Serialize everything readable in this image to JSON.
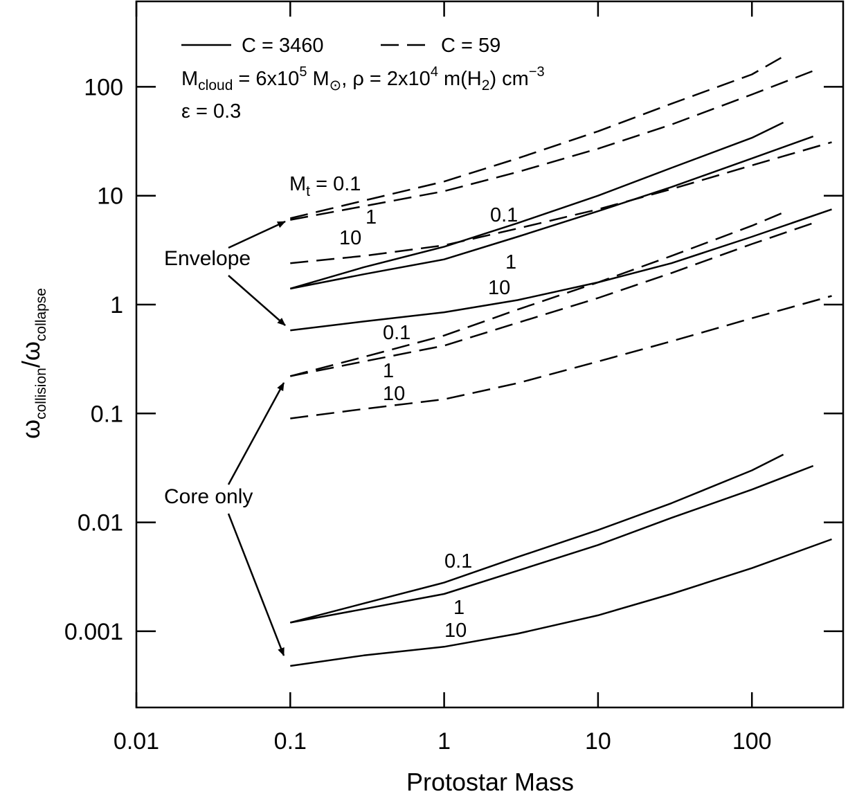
{
  "chart_data": {
    "type": "line",
    "xlabel": "Protostar Mass",
    "ylabel": "",
    "ylabel_parts": {
      "base": "ω",
      "num_sub": "collision",
      "sep": "/",
      "den_base": "ω",
      "den_sub": "collapse"
    },
    "xscale": "log",
    "yscale": "log",
    "xlim": [
      0.01,
      450
    ],
    "ylim": [
      0.0001,
      700
    ],
    "x_ticks": [
      {
        "value": 0.01,
        "label": "0.01"
      },
      {
        "value": 0.1,
        "label": "0.1"
      },
      {
        "value": 1,
        "label": "1"
      },
      {
        "value": 10,
        "label": "10"
      },
      {
        "value": 100,
        "label": "100"
      }
    ],
    "y_ticks": [
      {
        "value": 0.001,
        "label": "0.001"
      },
      {
        "value": 0.01,
        "label": "0.01"
      },
      {
        "value": 0.1,
        "label": "0.1"
      },
      {
        "value": 1,
        "label": "1"
      },
      {
        "value": 10,
        "label": "10"
      },
      {
        "value": 100,
        "label": "100"
      }
    ],
    "grid": false,
    "legend": {
      "position": "top-left",
      "entries": [
        {
          "label": "C = 3460",
          "style": "solid"
        },
        {
          "label": "C = 59",
          "style": "dashed"
        }
      ],
      "info_line1": {
        "m": "M",
        "m_sub": "cloud",
        "eq1": " = 6x10",
        "exp1": "5",
        "msun": " M",
        "msun_sub": "⊙",
        "rho": ", ρ = 2x10",
        "exp2": "4",
        "mh": " m(H",
        "h_sub": "2",
        "cm": ") cm",
        "exp3": "−3"
      },
      "info_line2": "ε = 0.3"
    },
    "annotations": {
      "mt_label": {
        "m": "M",
        "sub": "t",
        "rest": " = 0.1"
      },
      "envelope": "Envelope",
      "core_only": "Core only"
    },
    "series": [
      {
        "group": "Envelope",
        "C": "C = 59",
        "style": "dashed",
        "label": "0.1",
        "x": [
          0.1,
          0.3,
          1,
          3,
          10,
          30,
          100,
          160
        ],
        "y": [
          6.2,
          9.0,
          13.5,
          22,
          39,
          70,
          130,
          190
        ]
      },
      {
        "group": "Envelope",
        "C": "C = 59",
        "style": "dashed",
        "label": "1",
        "x": [
          0.1,
          0.3,
          1,
          3,
          10,
          30,
          100,
          250
        ],
        "y": [
          6.0,
          8.0,
          11.0,
          16.5,
          27,
          45,
          85,
          140
        ]
      },
      {
        "group": "Envelope",
        "C": "C = 3460",
        "style": "solid",
        "label": "0.1",
        "x": [
          0.1,
          0.3,
          1,
          3,
          10,
          30,
          100,
          160
        ],
        "y": [
          1.4,
          2.2,
          3.4,
          5.6,
          10,
          18,
          34,
          47
        ]
      },
      {
        "group": "Envelope",
        "C": "C = 59",
        "style": "dashed",
        "label": "10",
        "x": [
          0.1,
          0.3,
          1,
          3,
          10,
          30,
          100,
          330
        ],
        "y": [
          2.4,
          2.8,
          3.5,
          5.0,
          7.5,
          11.5,
          19,
          31
        ]
      },
      {
        "group": "Envelope",
        "C": "C = 3460",
        "style": "solid",
        "label": "1",
        "x": [
          0.1,
          0.3,
          1,
          3,
          10,
          30,
          100,
          250
        ],
        "y": [
          1.4,
          1.9,
          2.6,
          4.2,
          7.2,
          12,
          22,
          35
        ]
      },
      {
        "group": "Envelope",
        "C": "C = 3460",
        "style": "solid",
        "label": "10",
        "x": [
          0.1,
          0.3,
          1,
          3,
          10,
          30,
          100,
          330
        ],
        "y": [
          0.58,
          0.7,
          0.85,
          1.1,
          1.6,
          2.4,
          4.2,
          7.5
        ]
      },
      {
        "group": "Core only",
        "C": "C = 59",
        "style": "dashed",
        "label": "0.1",
        "x": [
          0.1,
          0.3,
          1,
          3,
          10,
          30,
          100,
          160
        ],
        "y": [
          0.22,
          0.33,
          0.52,
          0.9,
          1.6,
          2.8,
          5.3,
          7.0
        ]
      },
      {
        "group": "Core only",
        "C": "C = 59",
        "style": "dashed",
        "label": "1",
        "x": [
          0.1,
          0.3,
          1,
          3,
          10,
          30,
          100,
          250
        ],
        "y": [
          0.22,
          0.3,
          0.42,
          0.68,
          1.15,
          1.95,
          3.6,
          5.6
        ]
      },
      {
        "group": "Core only",
        "C": "C = 59",
        "style": "dashed",
        "label": "10",
        "x": [
          0.1,
          0.3,
          1,
          3,
          10,
          30,
          100,
          330
        ],
        "y": [
          0.09,
          0.11,
          0.135,
          0.19,
          0.3,
          0.46,
          0.75,
          1.2
        ]
      },
      {
        "group": "Core only",
        "C": "C = 3460",
        "style": "solid",
        "label": "0.1",
        "x": [
          0.1,
          0.3,
          1,
          3,
          10,
          30,
          100,
          160
        ],
        "y": [
          0.0012,
          0.0018,
          0.0028,
          0.0048,
          0.0085,
          0.015,
          0.03,
          0.042
        ]
      },
      {
        "group": "Core only",
        "C": "C = 3460",
        "style": "solid",
        "label": "1",
        "x": [
          0.1,
          0.3,
          1,
          3,
          10,
          30,
          100,
          250
        ],
        "y": [
          0.0012,
          0.0016,
          0.0022,
          0.0036,
          0.0062,
          0.011,
          0.02,
          0.033
        ]
      },
      {
        "group": "Core only",
        "C": "C = 3460",
        "style": "solid",
        "label": "10",
        "x": [
          0.1,
          0.3,
          1,
          3,
          10,
          30,
          100,
          330
        ],
        "y": [
          0.00048,
          0.0006,
          0.00072,
          0.00095,
          0.0014,
          0.0022,
          0.0038,
          0.007
        ]
      }
    ]
  }
}
